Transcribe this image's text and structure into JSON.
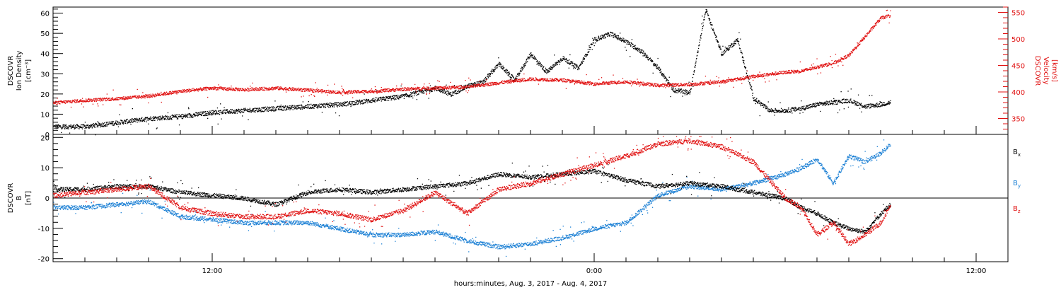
{
  "chart_data": [
    {
      "type": "scatter",
      "panel": "top",
      "ylabel_left": [
        "DSCOVR",
        "Ion Density",
        "[cm⁻³]"
      ],
      "ylabel_right": [
        "DSCOVR",
        "Velocity",
        "[km/s]"
      ],
      "ylim_left": [
        0,
        63
      ],
      "ylim_right": [
        320,
        560
      ],
      "yticks_left": [
        0,
        10,
        20,
        30,
        40,
        50,
        60
      ],
      "yticks_right": [
        350,
        400,
        450,
        500,
        550
      ],
      "xlabel": "hours:minutes, Aug.  3, 2017 - Aug.  4, 2017",
      "xlim_hours": [
        7,
        37
      ],
      "xticks": [
        {
          "h": 12,
          "label": "12:00"
        },
        {
          "h": 24,
          "label": "0:00"
        },
        {
          "h": 36,
          "label": "12:00"
        }
      ],
      "series": [
        {
          "axis": "left",
          "color": "#000000",
          "x": [
            7.0,
            8.0,
            9.0,
            10.0,
            11.0,
            12.0,
            13.0,
            14.0,
            15.0,
            16.0,
            17.0,
            18.0,
            18.5,
            19.0,
            19.5,
            20.0,
            20.5,
            21.0,
            21.5,
            22.0,
            22.5,
            23.0,
            23.5,
            24.0,
            24.5,
            25.0,
            25.5,
            26.0,
            26.5,
            27.0,
            27.5,
            28.0,
            28.5,
            29.0,
            29.5,
            30.0,
            30.5,
            31.0,
            31.5,
            32.0,
            32.5,
            33.0,
            33.3
          ],
          "y": [
            4,
            4,
            6,
            8,
            9,
            11,
            12,
            13,
            14,
            15,
            17,
            19,
            21,
            23,
            20,
            24,
            26,
            35,
            27,
            40,
            31,
            38,
            33,
            47,
            50,
            46,
            41,
            33,
            22,
            21,
            62,
            40,
            47,
            18,
            12,
            12,
            13,
            15,
            16,
            17,
            14,
            15,
            16
          ]
        },
        {
          "axis": "right",
          "color": "#e01010",
          "x": [
            7.0,
            8.0,
            9.0,
            10.0,
            11.0,
            12.0,
            13.0,
            14.0,
            15.0,
            16.0,
            17.0,
            18.0,
            19.0,
            20.0,
            21.0,
            22.0,
            23.0,
            24.0,
            25.0,
            26.0,
            27.0,
            28.0,
            29.0,
            30.0,
            30.5,
            31.0,
            31.5,
            32.0,
            32.5,
            33.0,
            33.3
          ],
          "y": [
            380,
            385,
            388,
            393,
            402,
            408,
            405,
            408,
            404,
            400,
            402,
            406,
            408,
            410,
            418,
            425,
            423,
            416,
            420,
            413,
            415,
            420,
            430,
            438,
            440,
            448,
            455,
            470,
            505,
            540,
            545
          ]
        }
      ]
    },
    {
      "type": "scatter",
      "panel": "bottom",
      "ylabel": [
        "DSCOVR",
        "B",
        "[nT]"
      ],
      "ylim": [
        -21,
        21
      ],
      "yticks": [
        -20,
        -10,
        0,
        10,
        20
      ],
      "zero_line": true,
      "legend": [
        {
          "label": "B",
          "sub": "x",
          "color": "#000000"
        },
        {
          "label": "B",
          "sub": "y",
          "color": "#1a7fd4"
        },
        {
          "label": "B",
          "sub": "z",
          "color": "#e01010"
        }
      ],
      "series": [
        {
          "name": "Bx",
          "color": "#000000",
          "x": [
            7.0,
            8.0,
            9.0,
            10.0,
            11.0,
            12.0,
            13.0,
            14.0,
            15.0,
            16.0,
            17.0,
            18.0,
            19.0,
            20.0,
            21.0,
            22.0,
            23.0,
            24.0,
            25.0,
            26.0,
            27.0,
            28.0,
            29.0,
            30.0,
            30.5,
            31.0,
            31.5,
            32.0,
            32.5,
            33.0,
            33.3
          ],
          "y": [
            3,
            3,
            4,
            4,
            2,
            1,
            0,
            -2,
            2,
            3,
            2,
            3,
            4,
            5,
            8,
            7,
            8,
            9,
            6,
            4,
            5,
            4,
            2,
            0,
            -3,
            -5,
            -8,
            -10,
            -11,
            -5,
            -2
          ]
        },
        {
          "name": "By",
          "color": "#1a7fd4",
          "x": [
            7.0,
            8.0,
            9.0,
            10.0,
            11.0,
            12.0,
            13.0,
            14.0,
            15.0,
            16.0,
            17.0,
            18.0,
            19.0,
            20.0,
            21.0,
            22.0,
            23.0,
            24.0,
            25.0,
            26.0,
            27.0,
            28.0,
            29.0,
            30.0,
            30.5,
            31.0,
            31.5,
            32.0,
            32.5,
            33.0,
            33.3
          ],
          "y": [
            -3,
            -3,
            -2,
            -1,
            -6,
            -7,
            -8,
            -8,
            -8,
            -10,
            -12,
            -12,
            -11,
            -14,
            -16,
            -15,
            -13,
            -10,
            -8,
            1,
            4,
            3,
            5,
            8,
            10,
            13,
            5,
            14,
            12,
            15,
            18
          ]
        },
        {
          "name": "Bz",
          "color": "#e01010",
          "x": [
            7.0,
            8.0,
            9.0,
            10.0,
            11.0,
            12.0,
            13.0,
            14.0,
            15.0,
            16.0,
            17.0,
            18.0,
            19.0,
            20.0,
            21.0,
            22.0,
            23.0,
            24.0,
            25.0,
            26.0,
            27.0,
            28.0,
            29.0,
            30.0,
            30.5,
            31.0,
            31.5,
            32.0,
            32.5,
            33.0,
            33.3
          ],
          "y": [
            1,
            2,
            3,
            4,
            -3,
            -5,
            -6,
            -6,
            -4,
            -5,
            -7,
            -4,
            2,
            -5,
            3,
            5,
            8,
            11,
            14,
            18,
            19,
            17,
            12,
            0,
            -3,
            -12,
            -8,
            -15,
            -12,
            -8,
            -2
          ]
        }
      ]
    }
  ]
}
